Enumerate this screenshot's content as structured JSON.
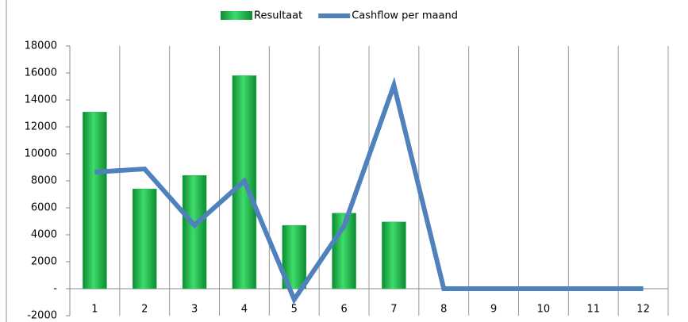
{
  "chart_data": {
    "type": "bar-line",
    "categories": [
      "1",
      "2",
      "3",
      "4",
      "5",
      "6",
      "7",
      "8",
      "9",
      "10",
      "11",
      "12"
    ],
    "series": [
      {
        "name": "Resultaat",
        "type": "bar",
        "color": "#1fb84a",
        "values": [
          13100,
          7400,
          8400,
          15800,
          4700,
          5600,
          4950,
          null,
          null,
          null,
          null,
          null
        ]
      },
      {
        "name": "Cashflow per maand",
        "type": "line",
        "color": "#4f81bd",
        "values": [
          8650,
          8880,
          4700,
          8000,
          -800,
          4650,
          15100,
          0,
          0,
          0,
          0,
          0
        ]
      }
    ],
    "ylim": [
      -2000,
      18000
    ],
    "yticks": [
      -2000,
      {
        "value": 0,
        "label": "-"
      },
      2000,
      4000,
      6000,
      8000,
      10000,
      12000,
      14000,
      16000,
      18000
    ],
    "grid": true,
    "legend": "top"
  }
}
